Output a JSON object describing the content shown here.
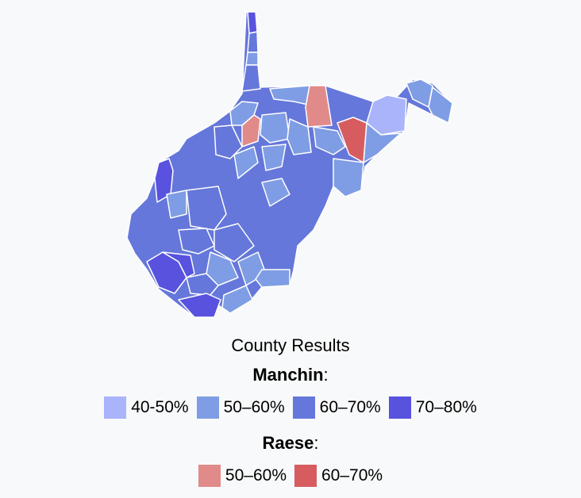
{
  "legend": {
    "title": "County Results",
    "groups": [
      {
        "name": "Manchin",
        "suffix": ":",
        "items": [
          {
            "label": "40-50%",
            "color": "#a9b4fb"
          },
          {
            "label": "50–60%",
            "color": "#7f9de4"
          },
          {
            "label": "60–70%",
            "color": "#6577da"
          },
          {
            "label": "70–80%",
            "color": "#5852df"
          }
        ]
      },
      {
        "name": "Raese",
        "suffix": ":",
        "items": [
          {
            "label": "50–60%",
            "color": "#e08a8a"
          },
          {
            "label": "60–70%",
            "color": "#d65c60"
          }
        ]
      }
    ]
  }
}
